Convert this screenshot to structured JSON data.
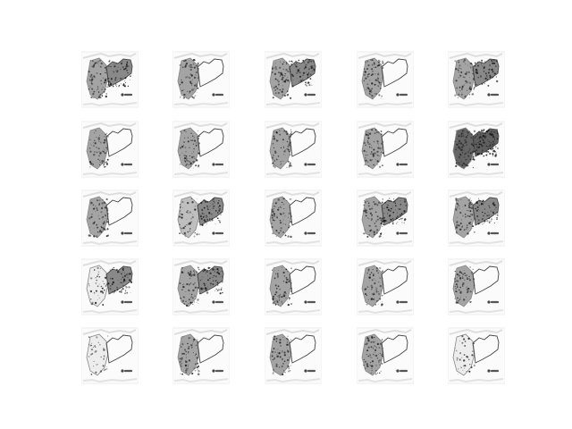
{
  "figure": {
    "grid": {
      "rows": 5,
      "columns": 5
    },
    "tiles": [
      {
        "left_region": "dense",
        "right_region": "filled"
      },
      {
        "left_region": "dense",
        "right_region": "outline"
      },
      {
        "left_region": "dense",
        "right_region": "filled"
      },
      {
        "left_region": "dense",
        "right_region": "outline"
      },
      {
        "left_region": "dense",
        "right_region": "filled"
      },
      {
        "left_region": "dense",
        "right_region": "outline"
      },
      {
        "left_region": "dense",
        "right_region": "outline"
      },
      {
        "left_region": "dense",
        "right_region": "outline"
      },
      {
        "left_region": "dense",
        "right_region": "outline"
      },
      {
        "left_region": "dark",
        "right_region": "dark"
      },
      {
        "left_region": "dense",
        "right_region": "outline"
      },
      {
        "left_region": "light",
        "right_region": "filled"
      },
      {
        "left_region": "dense",
        "right_region": "outline"
      },
      {
        "left_region": "dense",
        "right_region": "filled"
      },
      {
        "left_region": "dense",
        "right_region": "filled"
      },
      {
        "left_region": "spotted",
        "right_region": "filled"
      },
      {
        "left_region": "dense",
        "right_region": "filled"
      },
      {
        "left_region": "dense",
        "right_region": "outline"
      },
      {
        "left_region": "dense",
        "right_region": "outline"
      },
      {
        "left_region": "dense",
        "right_region": "outline"
      },
      {
        "left_region": "spotted",
        "right_region": "outline"
      },
      {
        "left_region": "dense",
        "right_region": "outline"
      },
      {
        "left_region": "dense",
        "right_region": "outline"
      },
      {
        "left_region": "dense",
        "right_region": "outline"
      },
      {
        "left_region": "spotted",
        "right_region": "outline"
      }
    ]
  }
}
